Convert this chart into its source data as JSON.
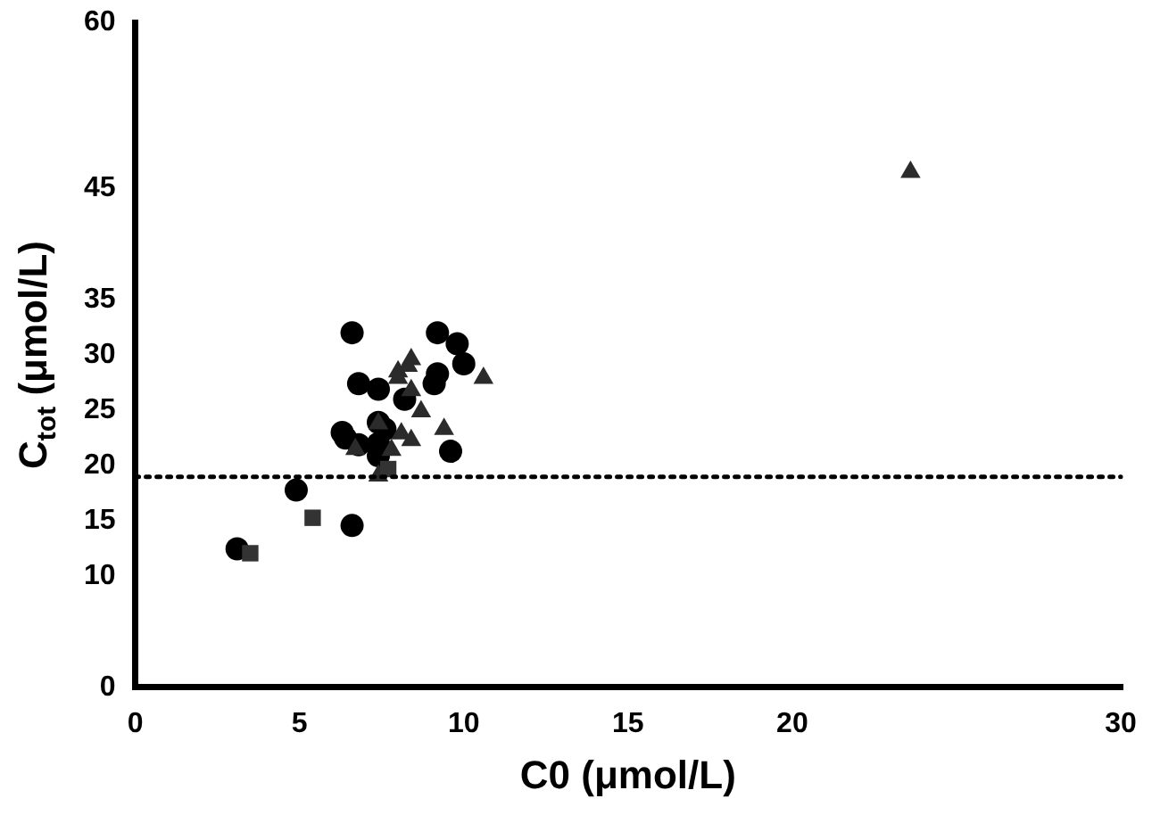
{
  "chart_data": {
    "type": "scatter",
    "xlabel": "C0 (μmol/L)",
    "ylabel": "C$_{tot}$ (μmol/L)",
    "xlim": [
      0,
      30
    ],
    "xticks": [
      0,
      5,
      10,
      15,
      20,
      30
    ],
    "ylim": [
      0,
      60
    ],
    "yticks": [
      0,
      10,
      15,
      20,
      25,
      30,
      35,
      45,
      60
    ],
    "grid": false,
    "legend": false,
    "series": [
      {
        "color": "#000000",
        "marker": "circle",
        "x": [
          3.1,
          4.9,
          6.6,
          6.6,
          6.8,
          7.4,
          9.2,
          9.8,
          10.0,
          9.2,
          9.1,
          8.2,
          7.4,
          7.6,
          6.3,
          6.4,
          6.8,
          7.4,
          7.4,
          9.6
        ],
        "values": [
          12.5,
          17.8,
          14.6,
          32.0,
          27.4,
          26.9,
          32.0,
          31.0,
          29.2,
          28.3,
          27.4,
          26.0,
          23.9,
          23.3,
          23.0,
          22.5,
          21.9,
          22.0,
          20.9,
          21.3
        ]
      },
      {
        "color": "#2b2b2b",
        "marker": "triangle",
        "x": [
          8.4,
          8.0,
          8.3,
          8.0,
          10.6,
          8.4,
          8.7,
          7.4,
          8.1,
          8.4,
          9.4,
          6.7,
          7.8,
          7.4,
          23.6
        ],
        "values": [
          29.6,
          28.5,
          29.0,
          27.9,
          27.9,
          26.8,
          24.9,
          23.8,
          22.9,
          22.3,
          23.3,
          21.5,
          21.4,
          19.1,
          46.5
        ]
      },
      {
        "color": "#333333",
        "marker": "square",
        "x": [
          3.5,
          5.4,
          7.7
        ],
        "values": [
          12.1,
          15.3,
          19.7
        ]
      }
    ],
    "ref_lines": [
      {
        "axis": "y",
        "value": 19,
        "color": "#000000",
        "line_style": "dotted"
      }
    ]
  }
}
